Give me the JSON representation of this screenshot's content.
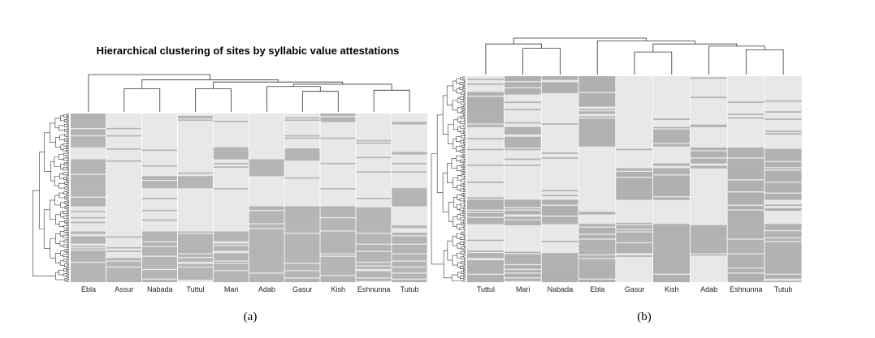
{
  "chart_data": [
    {
      "type": "heatmap",
      "panel_label": "(a)",
      "title": "Hierarchical clustering of sites by syllabic value attestations",
      "columns": [
        "Ebla",
        "Assur",
        "Nabada",
        "Tuttul",
        "Mari",
        "Adab",
        "Gasur",
        "Kish",
        "Eshnunna",
        "Tutub"
      ],
      "xlabel": "",
      "ylabel": "",
      "row_dendrogram": true,
      "column_dendrogram": true,
      "values_legend": {
        "attested": "#b4b4b4",
        "not_attested": "#e8e8e8"
      },
      "row_bands": [
        {
          "from": 0.0,
          "to": 0.05,
          "attested": [
            "Ebla",
            "Kish"
          ]
        },
        {
          "from": 0.05,
          "to": 0.2,
          "attested": [
            "Ebla"
          ]
        },
        {
          "from": 0.2,
          "to": 0.27,
          "attested": [
            "Mari",
            "Gasur"
          ]
        },
        {
          "from": 0.27,
          "to": 0.37,
          "attested": [
            "Ebla",
            "Adab"
          ]
        },
        {
          "from": 0.37,
          "to": 0.44,
          "attested": [
            "Nabada",
            "Tuttul",
            "Ebla"
          ]
        },
        {
          "from": 0.44,
          "to": 0.55,
          "attested": [
            "Ebla",
            "Tutub"
          ]
        },
        {
          "from": 0.55,
          "to": 0.7,
          "attested": [
            "Gasur",
            "Kish",
            "Eshnunna",
            "Adab"
          ]
        },
        {
          "from": 0.7,
          "to": 0.86,
          "attested": [
            "Ebla",
            "Nabada",
            "Tuttul",
            "Mari",
            "Adab",
            "Gasur",
            "Kish",
            "Eshnunna",
            "Tutub"
          ]
        },
        {
          "from": 0.86,
          "to": 1.0,
          "attested": [
            "Assur",
            "Ebla",
            "Nabada",
            "Tuttul",
            "Mari",
            "Adab",
            "Gasur",
            "Kish",
            "Eshnunna",
            "Tutub"
          ]
        }
      ]
    },
    {
      "type": "heatmap",
      "panel_label": "(b)",
      "title": "",
      "columns": [
        "Tuttul",
        "Mari",
        "Nabada",
        "Ebla",
        "Gasur",
        "Kish",
        "Adab",
        "Eshnunna",
        "Tutub"
      ],
      "xlabel": "",
      "ylabel": "",
      "row_dendrogram": true,
      "column_dendrogram": true,
      "values_legend": {
        "attested": "#b0b0b0",
        "not_attested": "#e8e8e8"
      },
      "row_bands": [
        {
          "from": 0.0,
          "to": 0.08,
          "attested": [
            "Mari",
            "Nabada",
            "Ebla"
          ]
        },
        {
          "from": 0.08,
          "to": 0.25,
          "attested": [
            "Tuttul",
            "Ebla"
          ]
        },
        {
          "from": 0.25,
          "to": 0.35,
          "attested": [
            "Mari",
            "Ebla",
            "Kish"
          ]
        },
        {
          "from": 0.35,
          "to": 0.45,
          "attested": [
            "Adab",
            "Tutub",
            "Eshnunna"
          ]
        },
        {
          "from": 0.45,
          "to": 0.6,
          "attested": [
            "Gasur",
            "Kish",
            "Tutub",
            "Eshnunna"
          ]
        },
        {
          "from": 0.6,
          "to": 0.72,
          "attested": [
            "Tuttul",
            "Mari",
            "Nabada",
            "Eshnunna"
          ]
        },
        {
          "from": 0.72,
          "to": 0.86,
          "attested": [
            "Ebla",
            "Gasur",
            "Kish",
            "Adab",
            "Eshnunna",
            "Tutub"
          ]
        },
        {
          "from": 0.86,
          "to": 1.0,
          "attested": [
            "Tuttul",
            "Mari",
            "Nabada",
            "Ebla",
            "Kish",
            "Eshnunna",
            "Tutub"
          ]
        }
      ]
    }
  ]
}
